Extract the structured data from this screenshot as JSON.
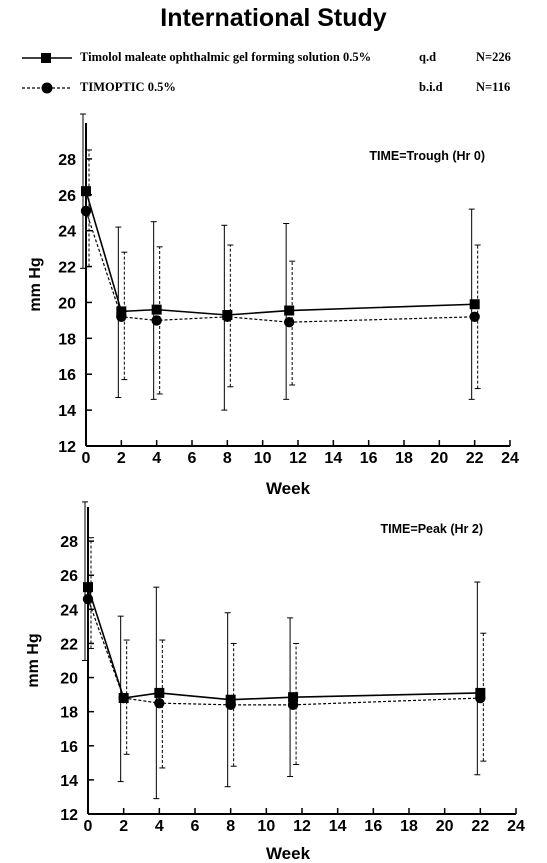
{
  "title": "International Study",
  "legend": [
    {
      "name": "Timolol maleate ophthalmic gel forming solution 0.5%",
      "dosing": "q.d",
      "n": "N=226",
      "marker": "square",
      "line": "solid"
    },
    {
      "name": "TIMOPTIC 0.5%",
      "dosing": "b.i.d",
      "n": "N=116",
      "marker": "circle",
      "line": "dashed"
    }
  ],
  "colors": {
    "ink": "#000000",
    "background": "#ffffff"
  },
  "chart_data": [
    {
      "type": "line",
      "annotation": "TIME=Trough (Hr 0)",
      "xlabel": "Week",
      "ylabel": "mm Hg",
      "xlim": [
        0,
        24
      ],
      "ylim": [
        12,
        30
      ],
      "xticks": [
        0,
        2,
        4,
        6,
        8,
        10,
        12,
        14,
        16,
        18,
        20,
        22,
        24
      ],
      "yticks": [
        12,
        14,
        16,
        18,
        20,
        22,
        24,
        26,
        28
      ],
      "grid": false,
      "series": [
        {
          "name": "Timolol maleate ophthalmic gel forming solution 0.5%",
          "marker": "square",
          "line": "solid",
          "x": [
            0,
            2,
            4,
            8,
            11.5,
            22
          ],
          "y": [
            26.2,
            19.5,
            19.6,
            19.3,
            19.55,
            19.9
          ],
          "error_low": [
            21.9,
            14.7,
            14.6,
            14.0,
            14.6,
            14.6
          ],
          "error_high": [
            30.5,
            24.2,
            24.5,
            24.3,
            24.4,
            25.2
          ]
        },
        {
          "name": "TIMOPTIC 0.5%",
          "marker": "circle",
          "line": "dashed",
          "x": [
            0,
            2,
            4,
            8,
            11.5,
            22
          ],
          "y": [
            25.1,
            19.2,
            19.0,
            19.2,
            18.9,
            19.2
          ],
          "error_low": [
            22.0,
            15.7,
            14.9,
            15.3,
            15.4,
            15.2
          ],
          "error_high": [
            28.5,
            22.8,
            23.1,
            23.2,
            22.3,
            23.2
          ]
        }
      ]
    },
    {
      "type": "line",
      "annotation": "TIME=Peak (Hr 2)",
      "xlabel": "Week",
      "ylabel": "mm Hg",
      "xlim": [
        0,
        24
      ],
      "ylim": [
        12,
        30
      ],
      "xticks": [
        0,
        2,
        4,
        6,
        8,
        10,
        12,
        14,
        16,
        18,
        20,
        22,
        24
      ],
      "yticks": [
        12,
        14,
        16,
        18,
        20,
        22,
        24,
        26,
        28
      ],
      "grid": false,
      "series": [
        {
          "name": "Timolol maleate ophthalmic gel forming solution 0.5%",
          "marker": "square",
          "line": "solid",
          "x": [
            0,
            2,
            4,
            8,
            11.5,
            22
          ],
          "y": [
            25.3,
            18.8,
            19.1,
            18.7,
            18.85,
            19.1
          ],
          "error_low": [
            21.0,
            13.9,
            12.9,
            13.6,
            14.2,
            14.3
          ],
          "error_high": [
            30.3,
            23.6,
            25.3,
            23.8,
            23.5,
            25.6
          ]
        },
        {
          "name": "TIMOPTIC 0.5%",
          "marker": "circle",
          "line": "dashed",
          "x": [
            0,
            2,
            4,
            8,
            11.5,
            22
          ],
          "y": [
            24.6,
            18.8,
            18.5,
            18.4,
            18.4,
            18.8
          ],
          "error_low": [
            21.7,
            15.5,
            14.7,
            14.8,
            14.9,
            15.1
          ],
          "error_high": [
            28.2,
            22.2,
            22.2,
            22.0,
            22.0,
            22.6
          ]
        }
      ]
    }
  ]
}
